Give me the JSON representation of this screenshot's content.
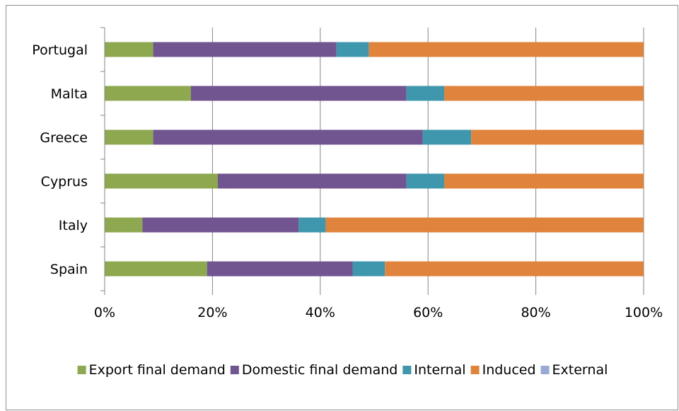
{
  "chart_data": {
    "type": "bar",
    "orientation": "horizontal",
    "stacked": "percent",
    "title": "",
    "xlabel": "",
    "ylabel": "",
    "categories": [
      "Portugal",
      "Malta",
      "Greece",
      "Cyprus",
      "Italy",
      "Spain"
    ],
    "series": [
      {
        "name": "Export final demand",
        "color": "#8ea84f",
        "values": [
          9,
          16,
          9,
          21,
          7,
          19
        ]
      },
      {
        "name": "Domestic final demand",
        "color": "#705591",
        "values": [
          34,
          40,
          50,
          35,
          29,
          27
        ]
      },
      {
        "name": "Internal",
        "color": "#3f97ae",
        "values": [
          6,
          7,
          9,
          7,
          5,
          6
        ]
      },
      {
        "name": "Induced",
        "color": "#e0843d",
        "values": [
          51,
          37,
          32,
          37,
          59,
          48
        ]
      },
      {
        "name": "External",
        "color": "#97a9d4",
        "values": [
          0,
          0,
          0,
          0,
          0,
          0
        ]
      }
    ],
    "xlim": [
      0,
      100
    ],
    "xticks": [
      "0%",
      "20%",
      "40%",
      "60%",
      "80%",
      "100%"
    ],
    "grid": "vertical",
    "legend": "bottom"
  }
}
